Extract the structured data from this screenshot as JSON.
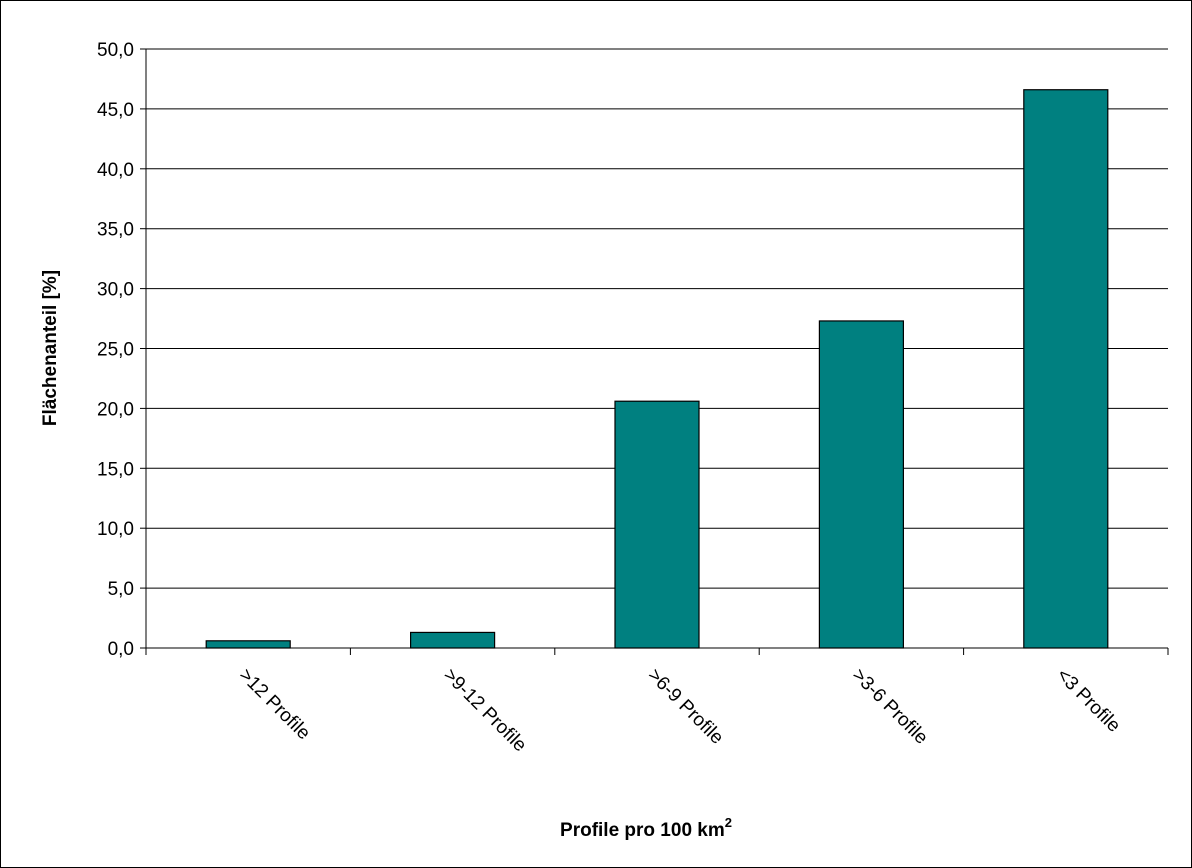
{
  "chart_data": {
    "type": "bar",
    "categories": [
      ">12 Profile",
      ">9-12 Profile",
      ">6-9 Profile",
      ">3-6 Profile",
      "<3 Profile"
    ],
    "values": [
      0.6,
      1.3,
      20.6,
      27.3,
      46.6
    ],
    "title": "",
    "xlabel": "Profile pro 100 km",
    "xlabel_superscript": "2",
    "ylabel": "Flächenanteil [%]",
    "ylim": [
      0,
      50
    ],
    "yticks": [
      "0,0",
      "5,0",
      "10,0",
      "15,0",
      "20,0",
      "25,0",
      "30,0",
      "35,0",
      "40,0",
      "45,0",
      "50,0"
    ],
    "grid": true,
    "bar_color": "#008080",
    "legend": "none"
  }
}
